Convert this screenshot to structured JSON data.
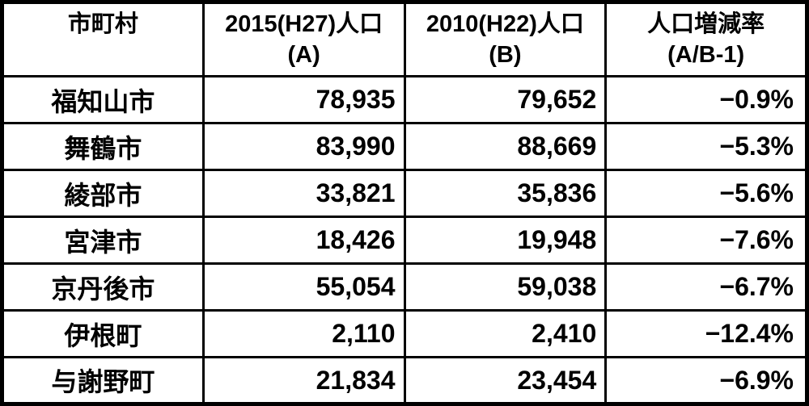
{
  "table": {
    "headers": [
      {
        "line1": "市町村",
        "line2": ""
      },
      {
        "line1": "2015(H27)人口",
        "line2": "(A)"
      },
      {
        "line1": "2010(H22)人口",
        "line2": "(B)"
      },
      {
        "line1": "人口増減率",
        "line2": "(A/B-1)"
      }
    ],
    "rows": [
      {
        "name": "福知山市",
        "pop2015": "78,935",
        "pop2010": "79,652",
        "change": "−0.9%"
      },
      {
        "name": "舞鶴市",
        "pop2015": "83,990",
        "pop2010": "88,669",
        "change": "−5.3%"
      },
      {
        "name": "綾部市",
        "pop2015": "33,821",
        "pop2010": "35,836",
        "change": "−5.6%"
      },
      {
        "name": "宮津市",
        "pop2015": "18,426",
        "pop2010": "19,948",
        "change": "−7.6%"
      },
      {
        "name": "京丹後市",
        "pop2015": "55,054",
        "pop2010": "59,038",
        "change": "−6.7%"
      },
      {
        "name": "伊根町",
        "pop2015": "2,110",
        "pop2010": "2,410",
        "change": "−12.4%"
      },
      {
        "name": "与謝野町",
        "pop2015": "21,834",
        "pop2010": "23,454",
        "change": "−6.9%"
      }
    ]
  },
  "chart_data": {
    "type": "table",
    "title": "",
    "columns": [
      "市町村",
      "2015(H27)人口 (A)",
      "2010(H22)人口 (B)",
      "人口増減率 (A/B-1)"
    ],
    "rows": [
      [
        "福知山市",
        78935,
        79652,
        "-0.9%"
      ],
      [
        "舞鶴市",
        83990,
        88669,
        "-5.3%"
      ],
      [
        "綾部市",
        33821,
        35836,
        "-5.6%"
      ],
      [
        "宮津市",
        18426,
        19948,
        "-7.6%"
      ],
      [
        "京丹後市",
        55054,
        59038,
        "-6.7%"
      ],
      [
        "伊根町",
        2110,
        2410,
        "-12.4%"
      ],
      [
        "与謝野町",
        21834,
        23454,
        "-6.9%"
      ]
    ]
  },
  "colors": {
    "border": "#000000",
    "text": "#000000",
    "background": "#ffffff"
  }
}
